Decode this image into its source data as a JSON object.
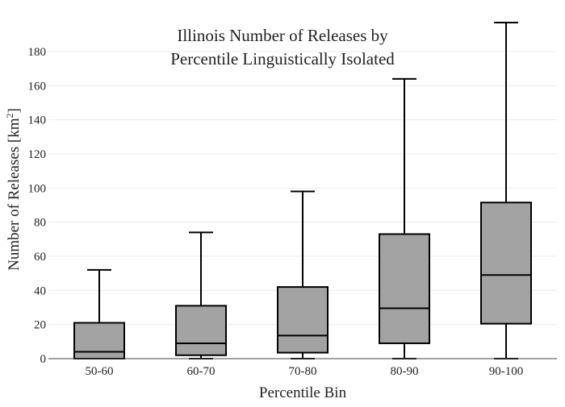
{
  "chart_data": {
    "type": "box",
    "title_lines": [
      "Illinois Number of Releases by",
      "Percentile Linguistically Isolated"
    ],
    "xlabel": "Percentile Bin",
    "ylabel_main": "Number of Releases  [km",
    "ylabel_sup": "2",
    "ylabel_tail": "]",
    "ylim": [
      0,
      197
    ],
    "yticks": [
      0,
      20,
      40,
      60,
      80,
      100,
      120,
      140,
      160,
      180
    ],
    "grid": true,
    "box_color": "#a3a3a3",
    "line_color": "#000000",
    "categories": [
      "50-60",
      "60-70",
      "70-80",
      "80-90",
      "90-100"
    ],
    "boxes": [
      {
        "category": "50-60",
        "min": 0,
        "q1": 0,
        "median": 4,
        "q3": 21,
        "max": 52
      },
      {
        "category": "60-70",
        "min": 0,
        "q1": 2,
        "median": 9,
        "q3": 31,
        "max": 74
      },
      {
        "category": "70-80",
        "min": 0,
        "q1": 3.5,
        "median": 13.5,
        "q3": 42,
        "max": 98
      },
      {
        "category": "80-90",
        "min": 0,
        "q1": 9,
        "median": 29.5,
        "q3": 73,
        "max": 164
      },
      {
        "category": "90-100",
        "min": 0,
        "q1": 20.5,
        "median": 49,
        "q3": 91.5,
        "max": 197
      }
    ]
  }
}
